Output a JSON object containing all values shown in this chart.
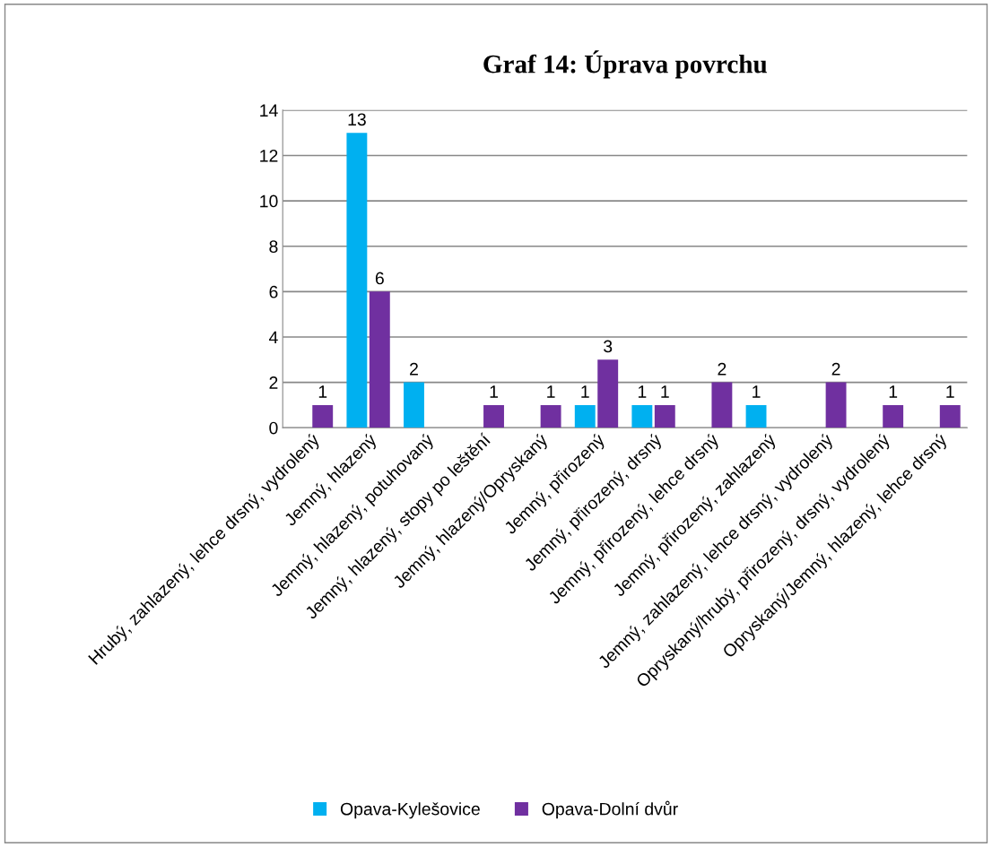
{
  "chart_data": {
    "type": "bar",
    "title": "Graf 14: Úprava povrchu",
    "categories": [
      "Hrubý, zahlazený, lehce drsný, vydrolený",
      "Jemný, hlazený",
      "Jemný, hlazený, potuhovaný",
      "Jemný, hlazený, stopy po leštění",
      "Jemný, hlazený/Opryskaný",
      "Jemný, přirozený",
      "Jemný, přirozený, drsný",
      "Jemný, přirozený, lehce drsný",
      "Jemný, přirozený, zahlazený",
      "Jemný, zahlazený, lehce drsný, vydrolený",
      "Opryskaný/hrubý, přirozený, drsný, vydrolený",
      "Opryskaný/Jemný, hlazený, lehce drsný"
    ],
    "series": [
      {
        "name": "Opava-Kylešovice",
        "color": "#00b0f0",
        "values": [
          null,
          13,
          2,
          null,
          null,
          1,
          1,
          null,
          1,
          null,
          null,
          null
        ]
      },
      {
        "name": "Opava-Dolní dvůr",
        "color": "#7030a0",
        "values": [
          1,
          6,
          null,
          1,
          1,
          3,
          1,
          2,
          null,
          2,
          1,
          1
        ]
      }
    ],
    "ylim": [
      0,
      14
    ],
    "yticks": [
      0,
      2,
      4,
      6,
      8,
      10,
      12,
      14
    ],
    "grid": "y",
    "legend": "bottom",
    "data_labels": true
  }
}
